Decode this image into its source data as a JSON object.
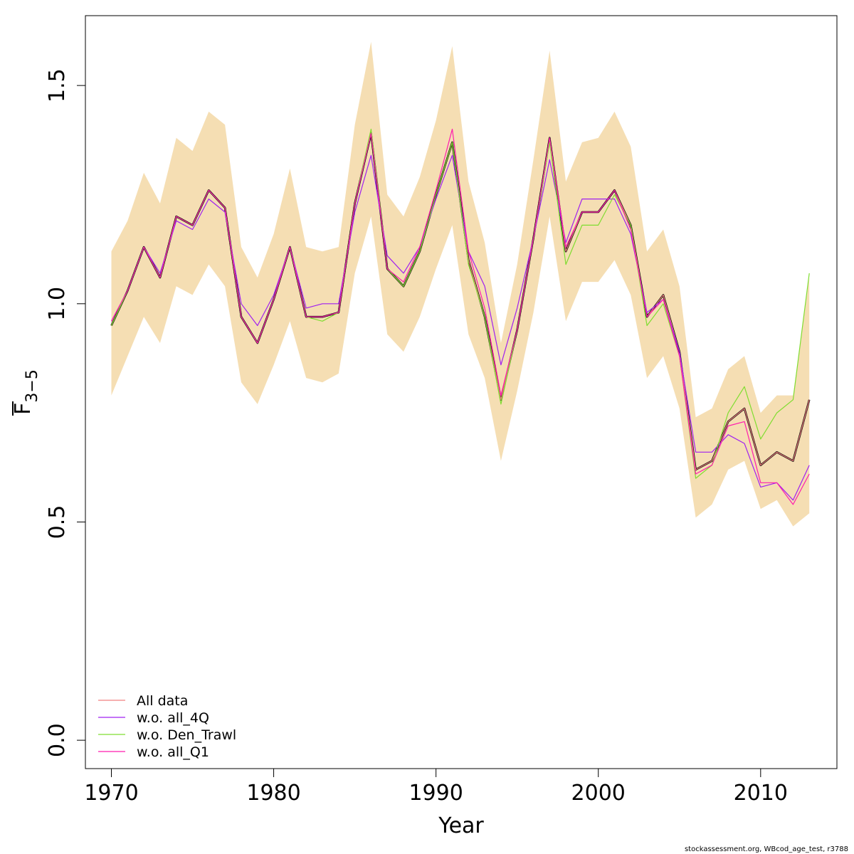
{
  "chart_data": {
    "type": "line",
    "xlabel": "Year",
    "ylabel": "F",
    "ylabel_sub": "3−5",
    "xlim": [
      1968.4,
      2014.7
    ],
    "ylim": [
      -0.065,
      1.66
    ],
    "x_ticks": [
      1970,
      1980,
      1990,
      2000,
      2010
    ],
    "x_tick_labels": [
      "1970",
      "1980",
      "1990",
      "2000",
      "2010"
    ],
    "y_ticks": [
      0.0,
      0.5,
      1.0,
      1.5
    ],
    "y_tick_labels": [
      "0.0",
      "0.5",
      "1.0",
      "1.5"
    ],
    "legend_position": "bottom-left",
    "colors": {
      "band": "#f5deb3",
      "main": "#000000",
      "all_data": "#f08080",
      "wo_all_4Q": "#a020f0",
      "wo_den_trawl": "#7fdd30",
      "wo_all_q1": "#ff1cae"
    },
    "x": [
      1970,
      1971,
      1972,
      1973,
      1974,
      1975,
      1976,
      1977,
      1978,
      1979,
      1980,
      1981,
      1982,
      1983,
      1984,
      1985,
      1986,
      1987,
      1988,
      1989,
      1990,
      1991,
      1992,
      1993,
      1994,
      1995,
      1996,
      1997,
      1998,
      1999,
      2000,
      2001,
      2002,
      2003,
      2004,
      2005,
      2006,
      2007,
      2008,
      2009,
      2010,
      2011,
      2012,
      2013
    ],
    "band_upper": [
      1.12,
      1.19,
      1.3,
      1.23,
      1.38,
      1.35,
      1.44,
      1.41,
      1.13,
      1.06,
      1.16,
      1.31,
      1.13,
      1.12,
      1.13,
      1.41,
      1.6,
      1.25,
      1.2,
      1.29,
      1.42,
      1.59,
      1.28,
      1.14,
      0.91,
      1.09,
      1.33,
      1.58,
      1.28,
      1.37,
      1.38,
      1.44,
      1.36,
      1.12,
      1.17,
      1.04,
      0.74,
      0.76,
      0.85,
      0.88,
      0.75,
      0.79,
      0.79,
      1.06
    ],
    "band_lower": [
      0.79,
      0.88,
      0.97,
      0.91,
      1.04,
      1.02,
      1.09,
      1.04,
      0.82,
      0.77,
      0.86,
      0.96,
      0.83,
      0.82,
      0.84,
      1.07,
      1.2,
      0.93,
      0.89,
      0.97,
      1.08,
      1.18,
      0.93,
      0.83,
      0.64,
      0.8,
      0.98,
      1.2,
      0.96,
      1.05,
      1.05,
      1.1,
      1.02,
      0.83,
      0.88,
      0.76,
      0.51,
      0.54,
      0.62,
      0.64,
      0.53,
      0.55,
      0.49,
      0.52
    ],
    "main_series": [
      0.95,
      1.03,
      1.13,
      1.06,
      1.2,
      1.18,
      1.26,
      1.22,
      0.97,
      0.91,
      1.01,
      1.13,
      0.97,
      0.97,
      0.98,
      1.23,
      1.39,
      1.08,
      1.04,
      1.12,
      1.25,
      1.37,
      1.1,
      0.97,
      0.78,
      0.94,
      1.15,
      1.38,
      1.12,
      1.21,
      1.21,
      1.26,
      1.18,
      0.97,
      1.02,
      0.89,
      0.62,
      0.64,
      0.73,
      0.76,
      0.63,
      0.66,
      0.64,
      0.78
    ],
    "series": [
      {
        "name": "All data",
        "color_key": "all_data",
        "values": [
          0.95,
          1.03,
          1.13,
          1.06,
          1.2,
          1.18,
          1.26,
          1.22,
          0.97,
          0.91,
          1.01,
          1.13,
          0.97,
          0.97,
          0.98,
          1.23,
          1.39,
          1.08,
          1.04,
          1.12,
          1.25,
          1.37,
          1.1,
          0.97,
          0.78,
          0.94,
          1.15,
          1.38,
          1.12,
          1.21,
          1.21,
          1.26,
          1.18,
          0.97,
          1.02,
          0.89,
          0.62,
          0.64,
          0.73,
          0.76,
          0.63,
          0.66,
          0.64,
          0.78
        ]
      },
      {
        "name": "w.o. all_4Q",
        "color_key": "wo_all_4Q",
        "values": [
          0.96,
          1.03,
          1.13,
          1.07,
          1.19,
          1.17,
          1.24,
          1.21,
          1.0,
          0.95,
          1.02,
          1.13,
          0.99,
          1.0,
          1.0,
          1.21,
          1.34,
          1.11,
          1.07,
          1.13,
          1.24,
          1.34,
          1.12,
          1.04,
          0.86,
          0.99,
          1.15,
          1.33,
          1.14,
          1.24,
          1.24,
          1.24,
          1.16,
          0.98,
          1.01,
          0.89,
          0.66,
          0.66,
          0.7,
          0.68,
          0.58,
          0.59,
          0.55,
          0.63
        ]
      },
      {
        "name": "w.o. Den_Trawl",
        "color_key": "wo_den_trawl",
        "values": [
          0.95,
          1.03,
          1.13,
          1.06,
          1.2,
          1.18,
          1.26,
          1.22,
          0.97,
          0.91,
          1.01,
          1.13,
          0.97,
          0.96,
          0.98,
          1.23,
          1.4,
          1.08,
          1.04,
          1.12,
          1.25,
          1.37,
          1.09,
          0.97,
          0.77,
          0.94,
          1.15,
          1.37,
          1.09,
          1.18,
          1.18,
          1.25,
          1.18,
          0.95,
          1.0,
          0.88,
          0.6,
          0.63,
          0.75,
          0.81,
          0.69,
          0.75,
          0.78,
          1.07
        ]
      },
      {
        "name": "w.o. all_Q1",
        "color_key": "wo_all_q1",
        "values": [
          0.96,
          1.03,
          1.13,
          1.06,
          1.2,
          1.18,
          1.26,
          1.22,
          0.97,
          0.91,
          1.01,
          1.13,
          0.97,
          0.97,
          0.98,
          1.23,
          1.39,
          1.08,
          1.05,
          1.13,
          1.26,
          1.4,
          1.12,
          0.99,
          0.79,
          0.94,
          1.15,
          1.38,
          1.13,
          1.21,
          1.21,
          1.26,
          1.17,
          0.97,
          1.01,
          0.88,
          0.61,
          0.63,
          0.72,
          0.73,
          0.59,
          0.59,
          0.54,
          0.61
        ]
      }
    ]
  },
  "footer": "stockassessment.org, WBcod_age_test, r3788"
}
